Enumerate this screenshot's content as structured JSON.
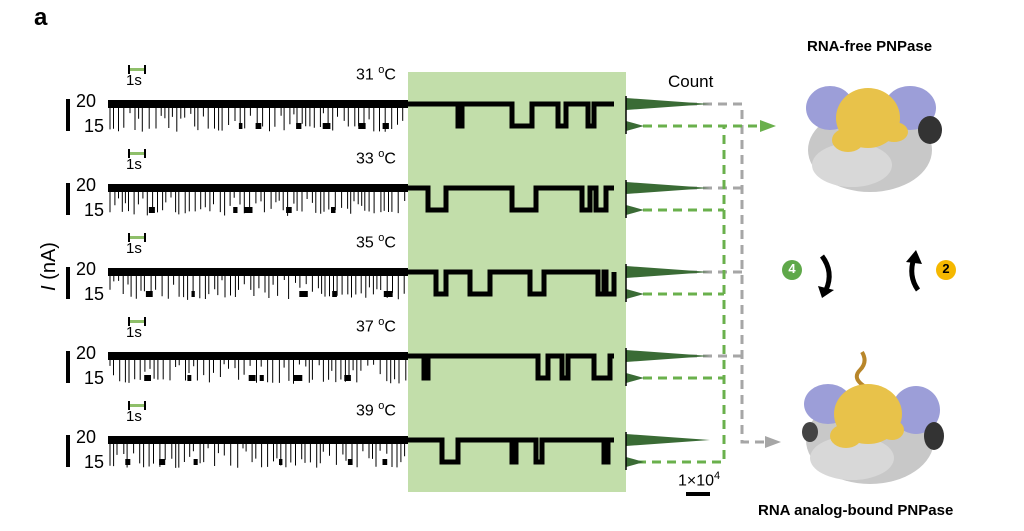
{
  "panel_label": "a",
  "y_axis_label_italic": "I",
  "y_axis_label_rest": " (nA)",
  "traces": [
    {
      "temp": "31",
      "tick_high": "20",
      "tick_low": "15"
    },
    {
      "temp": "33",
      "tick_high": "20",
      "tick_low": "15"
    },
    {
      "temp": "35",
      "tick_high": "20",
      "tick_low": "15"
    },
    {
      "temp": "37",
      "tick_high": "20",
      "tick_low": "15"
    },
    {
      "temp": "39",
      "tick_high": "20",
      "tick_low": "15"
    }
  ],
  "time_scale_label": "1s",
  "temp_unit_sup": "o",
  "temp_unit": "C",
  "count_label": "Count",
  "count_scale_label": "1×10",
  "count_scale_exp": "4",
  "state_top_title": "RNA-free PNPase",
  "state_bottom_title": "RNA analog-bound PNPase",
  "step_forward": "4",
  "step_back": "2",
  "colors": {
    "highlight": "#c2deaa",
    "green": "#6ab04c",
    "gray": "#a6a6a6",
    "badge_green": "#5fa84a",
    "badge_yellow": "#f5b800",
    "protein_yellow": "#e8c24a",
    "protein_purple": "#9c9ed8",
    "protein_gray": "#c8c8c8"
  }
}
